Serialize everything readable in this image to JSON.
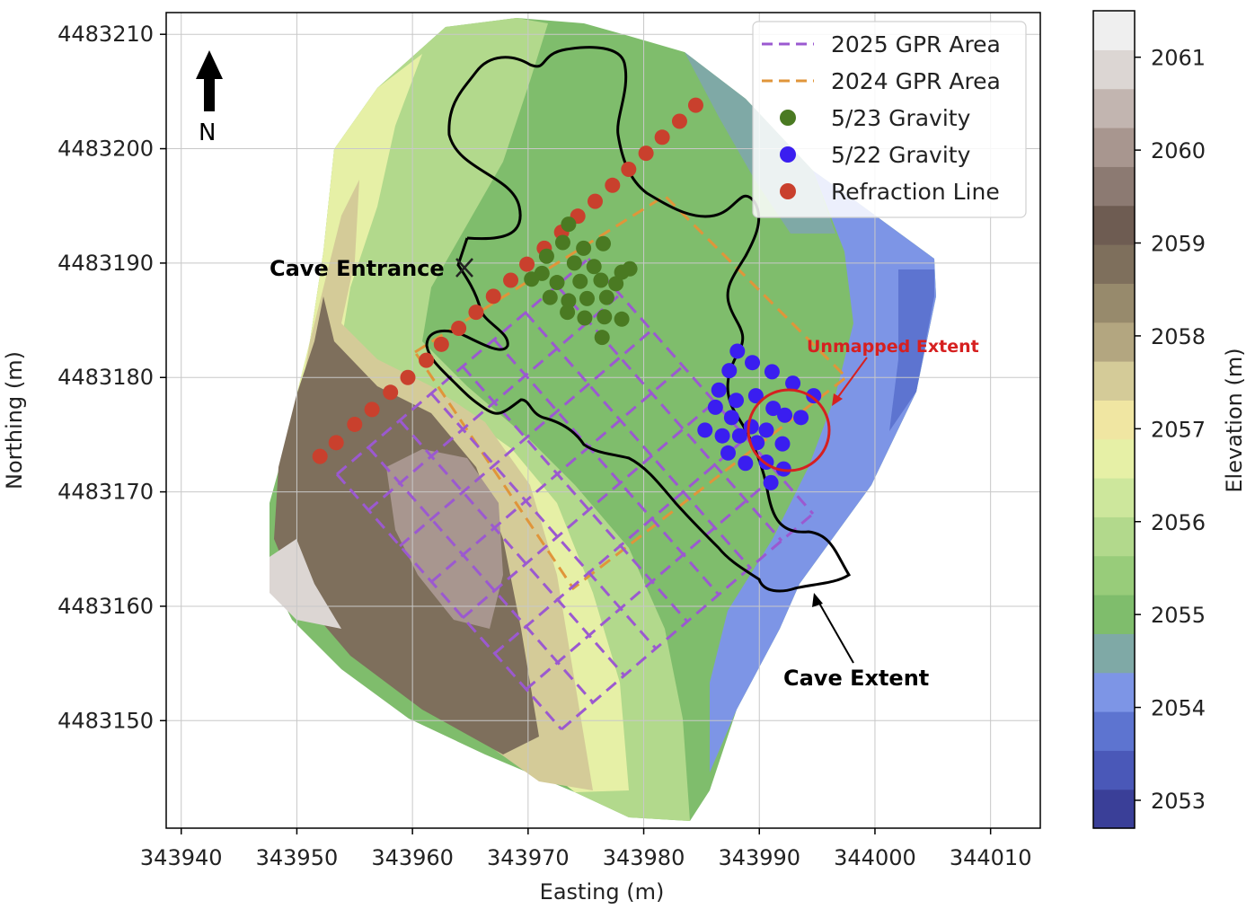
{
  "map": {
    "xlabel": "Easting (m)",
    "ylabel": "Northing (m)",
    "north_label": "N",
    "x_ticks": [
      "343940",
      "343950",
      "343960",
      "343970",
      "343980",
      "343990",
      "344000",
      "344010"
    ],
    "x_tick_values": [
      343940,
      343950,
      343960,
      343970,
      343980,
      343990,
      344000,
      344010
    ],
    "y_ticks": [
      "4483210",
      "4483200",
      "4483190",
      "4483180",
      "4483170",
      "4483160",
      "4483150"
    ],
    "y_tick_values": [
      4483210,
      4483200,
      4483190,
      4483180,
      4483170,
      4483160,
      4483150
    ],
    "xlim": [
      343938.7,
      344014.3
    ],
    "ylim": [
      4483140.6,
      4483211.9
    ],
    "grid": true,
    "annotations": {
      "cave_entrance": "Cave Entrance",
      "cave_extent": "Cave Extent",
      "unmapped_extent": "Unmapped Extent"
    }
  },
  "legend": {
    "placement": "top-right",
    "items": [
      {
        "label": "2025 GPR Area",
        "kind": "dashed",
        "color": "#9b59d0"
      },
      {
        "label": "2024 GPR Area",
        "kind": "dashed",
        "color": "#e0953a"
      },
      {
        "label": "5/23 Gravity",
        "kind": "dot",
        "color": "#4a7a22"
      },
      {
        "label": "5/22 Gravity",
        "kind": "dot",
        "color": "#3a1ef0"
      },
      {
        "label": "Refraction Line",
        "kind": "dot",
        "color": "#c9402d"
      }
    ]
  },
  "colorbar": {
    "label": "Elevation (m)",
    "ticks": [
      "2061",
      "2060",
      "2059",
      "2058",
      "2057",
      "2056",
      "2055",
      "2054",
      "2053"
    ],
    "tick_values": [
      2061,
      2060,
      2059,
      2058,
      2057,
      2056,
      2055,
      2054,
      2053
    ],
    "range": [
      2052.7,
      2061.5
    ],
    "band_colors": [
      "#3a3f98",
      "#4a58b8",
      "#5d74d0",
      "#7d95e6",
      "#7fa9a6",
      "#7fbd6c",
      "#98cc7a",
      "#b2d98c",
      "#cde79c",
      "#e6f0a6",
      "#f0e6a2",
      "#d4cb98",
      "#b3a680",
      "#978a6c",
      "#7e6f5c",
      "#6e5c52",
      "#8c7a72",
      "#a8968f",
      "#c2b5b0",
      "#dcd6d3",
      "#efefef"
    ]
  },
  "chart_data": {
    "type": "scatter",
    "title": "",
    "xlabel": "Easting (m)",
    "ylabel": "Northing (m)",
    "xlim": [
      343938.7,
      344014.3
    ],
    "ylim": [
      4483140.6,
      4483211.9
    ],
    "series": [
      {
        "name": "Refraction Line",
        "color": "#c9402d",
        "points": [
          [
            343952.0,
            4483173.1
          ],
          [
            343953.4,
            4483174.3
          ],
          [
            343955.0,
            4483175.9
          ],
          [
            343956.5,
            4483177.2
          ],
          [
            343958.1,
            4483178.7
          ],
          [
            343959.6,
            4483180.0
          ],
          [
            343961.2,
            4483181.5
          ],
          [
            343962.5,
            4483182.9
          ],
          [
            343964.0,
            4483184.3
          ],
          [
            343965.5,
            4483185.7
          ],
          [
            343967.0,
            4483187.1
          ],
          [
            343968.5,
            4483188.5
          ],
          [
            343969.9,
            4483189.9
          ],
          [
            343971.4,
            4483191.3
          ],
          [
            343972.9,
            4483192.7
          ],
          [
            343974.3,
            4483194.1
          ],
          [
            343975.8,
            4483195.4
          ],
          [
            343977.3,
            4483196.8
          ],
          [
            343978.7,
            4483198.2
          ],
          [
            343980.2,
            4483199.6
          ],
          [
            343981.6,
            4483201.0
          ],
          [
            343983.1,
            4483202.4
          ],
          [
            343984.5,
            4483203.8
          ]
        ]
      },
      {
        "name": "5/23 Gravity",
        "color": "#4a7a22",
        "points": [
          [
            343973.5,
            4483193.4
          ],
          [
            343973.0,
            4483191.8
          ],
          [
            343974.8,
            4483191.3
          ],
          [
            343976.5,
            4483191.7
          ],
          [
            343971.6,
            4483190.6
          ],
          [
            343974.0,
            4483190.0
          ],
          [
            343975.7,
            4483189.7
          ],
          [
            343978.8,
            4483189.5
          ],
          [
            343971.2,
            4483189.1
          ],
          [
            343974.5,
            4483188.4
          ],
          [
            343976.3,
            4483188.5
          ],
          [
            343977.6,
            4483188.2
          ],
          [
            343978.1,
            4483189.2
          ],
          [
            343970.3,
            4483188.6
          ],
          [
            343972.5,
            4483188.3
          ],
          [
            343971.9,
            4483187.0
          ],
          [
            343973.5,
            4483186.7
          ],
          [
            343975.1,
            4483186.9
          ],
          [
            343976.8,
            4483187.0
          ],
          [
            343973.4,
            4483185.7
          ],
          [
            343974.9,
            4483185.2
          ],
          [
            343976.6,
            4483185.3
          ],
          [
            343978.1,
            4483185.1
          ],
          [
            343976.4,
            4483183.5
          ]
        ]
      },
      {
        "name": "5/22 Gravity",
        "color": "#3a1ef0",
        "points": [
          [
            343988.1,
            4483182.3
          ],
          [
            343987.4,
            4483180.6
          ],
          [
            343989.4,
            4483181.3
          ],
          [
            343991.1,
            4483180.5
          ],
          [
            343992.9,
            4483179.5
          ],
          [
            343994.7,
            4483178.4
          ],
          [
            343986.5,
            4483178.9
          ],
          [
            343988.0,
            4483178.0
          ],
          [
            343989.7,
            4483178.4
          ],
          [
            343991.2,
            4483177.3
          ],
          [
            343986.2,
            4483177.4
          ],
          [
            343987.6,
            4483176.5
          ],
          [
            343989.3,
            4483175.7
          ],
          [
            343990.6,
            4483175.4
          ],
          [
            343992.2,
            4483176.7
          ],
          [
            343993.6,
            4483176.5
          ],
          [
            343985.3,
            4483175.4
          ],
          [
            343986.8,
            4483174.9
          ],
          [
            343988.3,
            4483174.9
          ],
          [
            343989.8,
            4483174.3
          ],
          [
            343992.0,
            4483174.2
          ],
          [
            343987.3,
            4483173.4
          ],
          [
            343988.8,
            4483172.5
          ],
          [
            343990.6,
            4483172.6
          ],
          [
            343992.1,
            4483172.0
          ],
          [
            343991.0,
            4483170.8
          ]
        ]
      }
    ]
  }
}
